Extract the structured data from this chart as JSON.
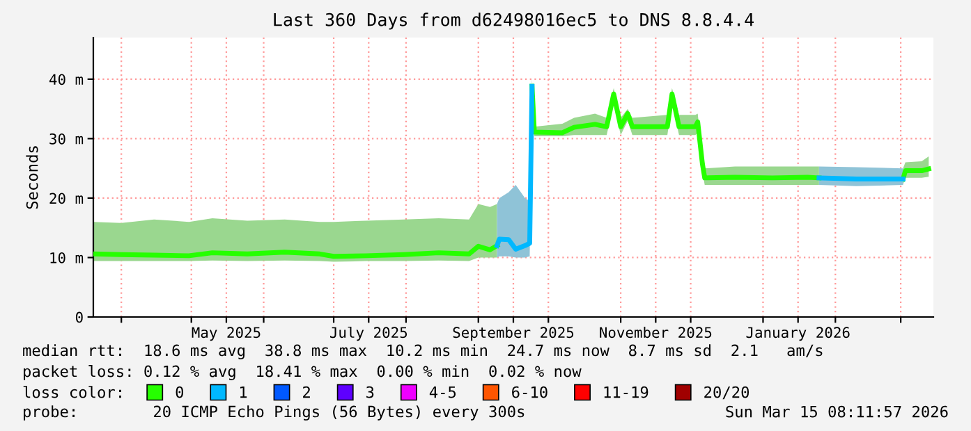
{
  "chart_data": {
    "type": "line",
    "title": "Last 360 Days from d62498016ec5 to DNS 8.8.4.4",
    "ylabel": "Seconds",
    "legend_title": "loss color:",
    "xlim": [
      "2025-03-20",
      "2026-03-15"
    ],
    "ylim": [
      0,
      47
    ],
    "xticks": [
      {
        "value": "2025-04-01",
        "label": null
      },
      {
        "value": "2025-05-01",
        "label": null
      },
      {
        "value": "2025-05-16",
        "label": "May 2025"
      },
      {
        "value": "2025-06-01",
        "label": null
      },
      {
        "value": "2025-07-01",
        "label": null
      },
      {
        "value": "2025-07-16",
        "label": "July 2025"
      },
      {
        "value": "2025-08-01",
        "label": null
      },
      {
        "value": "2025-09-01",
        "label": null
      },
      {
        "value": "2025-09-16",
        "label": "September 2025"
      },
      {
        "value": "2025-10-01",
        "label": null
      },
      {
        "value": "2025-11-01",
        "label": null
      },
      {
        "value": "2025-11-16",
        "label": "November 2025"
      },
      {
        "value": "2025-12-01",
        "label": null
      },
      {
        "value": "2026-01-01",
        "label": null
      },
      {
        "value": "2026-01-16",
        "label": "January 2026"
      },
      {
        "value": "2026-02-01",
        "label": null
      },
      {
        "value": "2026-03-01",
        "label": null
      }
    ],
    "yticks": [
      0,
      {
        "value": 10,
        "label": "10 m"
      },
      {
        "value": 20,
        "label": "20 m"
      },
      {
        "value": 30,
        "label": "30 m"
      },
      {
        "value": 40,
        "label": "40 m"
      }
    ],
    "grid": true,
    "legend": "bottom",
    "series": [
      {
        "name": "0",
        "color": "#26ff00",
        "x": [
          "2025-03-20",
          "2025-04-01",
          "2025-04-15",
          "2025-04-30",
          "2025-05-10",
          "2025-05-25",
          "2025-06-10",
          "2025-06-25",
          "2025-07-01",
          "2025-07-15",
          "2025-07-31",
          "2025-08-15",
          "2025-08-28",
          "2025-09-01",
          "2025-09-06",
          "2025-09-09",
          "2025-09-15",
          "2025-09-24",
          "2025-09-25",
          "2025-10-07",
          "2025-10-12",
          "2025-10-21",
          "2025-10-26",
          "2025-10-29",
          "2025-11-01",
          "2025-11-04",
          "2025-11-06",
          "2025-11-21",
          "2025-11-23",
          "2025-11-26",
          "2025-12-03",
          "2025-12-04",
          "2025-12-06",
          "2025-12-07",
          "2025-12-20",
          "2026-01-05",
          "2026-01-20",
          "2026-01-25",
          "2026-02-10",
          "2026-03-02",
          "2026-03-03",
          "2026-03-10",
          "2026-03-13"
        ],
        "values": [
          10.6,
          10.5,
          10.4,
          10.3,
          10.8,
          10.6,
          10.9,
          10.6,
          10.2,
          10.3,
          10.5,
          10.8,
          10.6,
          11.9,
          11.3,
          12.0,
          null,
          38.8,
          31.1,
          31.0,
          31.9,
          32.4,
          32.0,
          37.5,
          32.0,
          34.2,
          32.0,
          32.0,
          37.5,
          32.0,
          32.0,
          32.8,
          25.8,
          23.4,
          23.5,
          23.4,
          23.5,
          23.4,
          null,
          23.2,
          24.6,
          24.6,
          24.9
        ],
        "lower": [
          9.4,
          9.4,
          9.4,
          9.4,
          9.5,
          9.4,
          9.5,
          9.4,
          9.3,
          9.4,
          9.4,
          9.5,
          9.4,
          10.0,
          10.0,
          10.0,
          null,
          37.5,
          30.4,
          30.4,
          30.6,
          30.6,
          30.6,
          36.0,
          30.6,
          33.0,
          30.6,
          30.6,
          36.0,
          30.6,
          30.6,
          31.0,
          24.5,
          22.2,
          22.2,
          22.2,
          22.2,
          22.2,
          null,
          22.2,
          23.4,
          23.4,
          23.6
        ],
        "upper": [
          16.0,
          15.8,
          16.4,
          16.0,
          16.6,
          16.2,
          16.4,
          16.0,
          16.0,
          16.2,
          16.4,
          16.6,
          16.4,
          19.0,
          18.5,
          19.0,
          null,
          40.0,
          32.0,
          32.5,
          33.5,
          34.2,
          33.5,
          38.5,
          33.5,
          35.0,
          33.5,
          34.0,
          38.5,
          34.0,
          34.0,
          34.2,
          27.0,
          25.0,
          25.3,
          25.3,
          25.3,
          25.3,
          null,
          25.0,
          26.0,
          26.2,
          27.0
        ]
      },
      {
        "name": "1",
        "color": "#00b8ff",
        "x": [
          "2025-09-09",
          "2025-09-10",
          "2025-09-14",
          "2025-09-17",
          "2025-09-21",
          "2025-09-23",
          "2025-09-24",
          "2025-11-01",
          "2026-01-25",
          "2026-02-10",
          "2026-03-02"
        ],
        "values": [
          12.0,
          13.1,
          13.0,
          11.4,
          12.0,
          12.4,
          38.8,
          null,
          23.4,
          23.2,
          23.2
        ],
        "lower": [
          10.0,
          10.2,
          10.2,
          10.0,
          10.0,
          10.2,
          37.5,
          null,
          22.2,
          22.0,
          22.2
        ],
        "upper": [
          19.0,
          20.0,
          21.0,
          22.2,
          20.0,
          19.5,
          40.0,
          null,
          25.3,
          25.2,
          25.0
        ]
      },
      {
        "name": "2",
        "color": "#0059ff"
      },
      {
        "name": "3",
        "color": "#5e00ff"
      },
      {
        "name": "4-5",
        "color": "#ee00ff"
      },
      {
        "name": "6-10",
        "color": "#ff5500"
      },
      {
        "name": "11-19",
        "color": "#ff0000"
      },
      {
        "name": "20/20",
        "color": "#a00000"
      }
    ],
    "annotations": [
      "median rtt:  18.6 ms avg  38.8 ms max  10.2 ms min  24.7 ms now  8.7 ms sd  2.1   am/s",
      "packet loss: 0.12 % avg  18.41 % max  0.00 % min  0.02 % now",
      "probe:        20 ICMP Echo Pings (56 Bytes) every 300s",
      "Sun Mar 15 08:11:57 2026"
    ]
  }
}
